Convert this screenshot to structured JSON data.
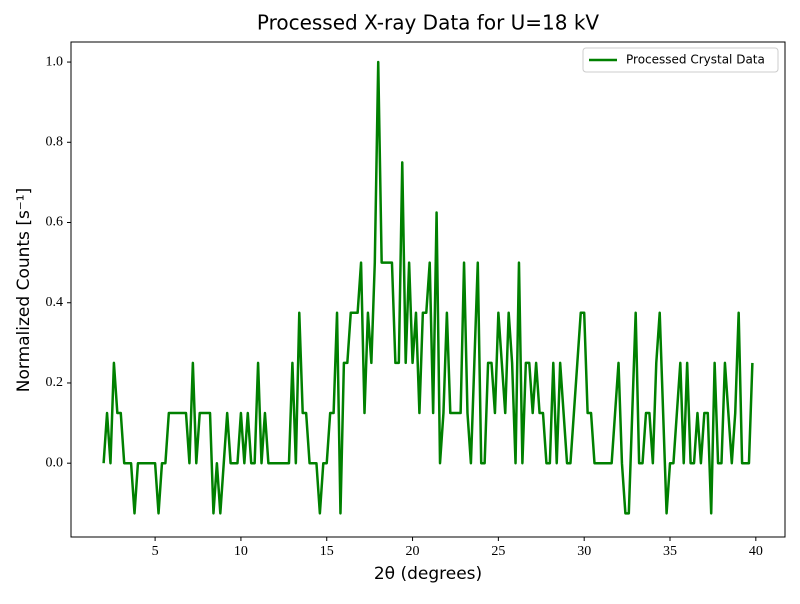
{
  "chart_data": {
    "type": "line",
    "title": "Processed X-ray Data for U=18 kV",
    "x_label": "2θ (degrees)",
    "y_label": "Normalized Counts [s⁻¹]",
    "legend_position": "upper right",
    "grid": false,
    "x": [
      2,
      2.2,
      2.4,
      2.6,
      2.8,
      3,
      3.2,
      3.4,
      3.6,
      3.8,
      4,
      4.2,
      4.4,
      4.6,
      4.8,
      5,
      5.2,
      5.4,
      5.6,
      5.8,
      6,
      6.2,
      6.4,
      6.6,
      6.8,
      7,
      7.2,
      7.4,
      7.6,
      7.8,
      8,
      8.2,
      8.4,
      8.6,
      8.8,
      9,
      9.2,
      9.4,
      9.6,
      9.8,
      10,
      10.2,
      10.4,
      10.6,
      10.8,
      11,
      11.2,
      11.4,
      11.6,
      11.8,
      12,
      12.2,
      12.4,
      12.6,
      12.8,
      13,
      13.2,
      13.4,
      13.6,
      13.8,
      14,
      14.2,
      14.4,
      14.6,
      14.8,
      15,
      15.2,
      15.4,
      15.6,
      15.8,
      16,
      16.2,
      16.4,
      16.6,
      16.8,
      17,
      17.2,
      17.4,
      17.6,
      17.8,
      18,
      18.2,
      18.4,
      18.6,
      18.8,
      19,
      19.2,
      19.4,
      19.6,
      19.8,
      20,
      20.2,
      20.4,
      20.6,
      20.8,
      21,
      21.2,
      21.4,
      21.6,
      21.8,
      22,
      22.2,
      22.4,
      22.6,
      22.8,
      23,
      23.2,
      23.4,
      23.6,
      23.8,
      24,
      24.2,
      24.4,
      24.6,
      24.8,
      25,
      25.2,
      25.4,
      25.6,
      25.8,
      26,
      26.2,
      26.4,
      26.6,
      26.8,
      27,
      27.2,
      27.4,
      27.6,
      27.8,
      28,
      28.2,
      28.4,
      28.6,
      28.8,
      29,
      29.2,
      29.4,
      29.6,
      29.8,
      30,
      30.2,
      30.4,
      30.6,
      30.8,
      31,
      31.2,
      31.4,
      31.6,
      31.8,
      32,
      32.2,
      32.4,
      32.6,
      32.8,
      33,
      33.2,
      33.4,
      33.6,
      33.8,
      34,
      34.2,
      34.4,
      34.6,
      34.8,
      35,
      35.2,
      35.4,
      35.6,
      35.8,
      36,
      36.2,
      36.4,
      36.6,
      36.8,
      37,
      37.2,
      37.4,
      37.6,
      37.8,
      38,
      38.2,
      38.4,
      38.6,
      38.8,
      39,
      39.2,
      39.4,
      39.6,
      39.8
    ],
    "series": [
      {
        "name": "Processed Crystal Data",
        "color": "#008000",
        "values": [
          0,
          0.125,
          0,
          0.25,
          0.125,
          0.125,
          0,
          0,
          0,
          -0.125,
          0,
          0,
          0,
          0,
          0,
          0,
          -0.125,
          0,
          0,
          0.125,
          0.125,
          0.125,
          0.125,
          0.125,
          0.125,
          0,
          0.25,
          0,
          0.125,
          0.125,
          0.125,
          0.125,
          -0.125,
          0,
          -0.125,
          0,
          0.125,
          0,
          0,
          0,
          0.125,
          0,
          0.125,
          0,
          0,
          0.25,
          0,
          0.125,
          0,
          0,
          0,
          0,
          0,
          0,
          0,
          0.25,
          0,
          0.375,
          0.125,
          0.125,
          0,
          0,
          0,
          -0.125,
          0,
          0,
          0.125,
          0.125,
          0.375,
          -0.125,
          0.25,
          0.25,
          0.375,
          0.375,
          0.375,
          0.5,
          0.125,
          0.375,
          0.25,
          0.5,
          1,
          0.5,
          0.5,
          0.5,
          0.5,
          0.25,
          0.25,
          0.75,
          0.25,
          0.5,
          0.25,
          0.375,
          0.125,
          0.375,
          0.375,
          0.5,
          0.125,
          0.625,
          0,
          0.125,
          0.375,
          0.125,
          0.125,
          0.125,
          0.125,
          0.5,
          0.125,
          0,
          0.25,
          0.5,
          0,
          0,
          0.25,
          0.25,
          0.125,
          0.375,
          0.25,
          0.125,
          0.375,
          0.25,
          0,
          0.5,
          0,
          0.25,
          0.25,
          0.125,
          0.25,
          0.125,
          0.125,
          0,
          0,
          0.25,
          0,
          0.25,
          0.125,
          0,
          0,
          0.125,
          0.25,
          0.375,
          0.375,
          0.125,
          0.125,
          0,
          0,
          0,
          0,
          0,
          0,
          0.125,
          0.25,
          0,
          -0.125,
          -0.125,
          0.125,
          0.375,
          0,
          0,
          0.125,
          0.125,
          0,
          0.25,
          0.375,
          0.125,
          -0.125,
          0,
          0,
          0.125,
          0.25,
          0,
          0.25,
          0,
          0,
          0.125,
          0,
          0.125,
          0.125,
          -0.125,
          0.25,
          0,
          0,
          0.25,
          0.125,
          0,
          0.125,
          0.375,
          0,
          0,
          0,
          0.25
        ]
      }
    ],
    "xlim": [
      0.1,
      41.7
    ],
    "ylim": [
      -0.184,
      1.05
    ],
    "xticks": [
      5,
      10,
      15,
      20,
      25,
      30,
      35,
      40
    ],
    "yticks": [
      {
        "value": 0,
        "label": "0.0"
      },
      0.2,
      0.4,
      0.6,
      0.8,
      {
        "value": 1,
        "label": "1.0"
      }
    ]
  }
}
